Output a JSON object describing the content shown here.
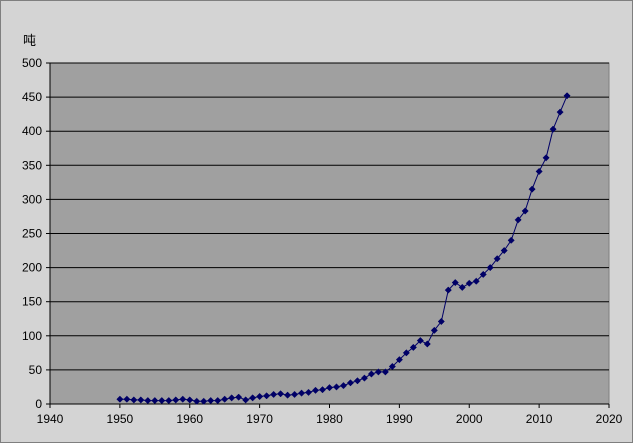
{
  "colors": {
    "frame_bg": "#d4d4d4",
    "plot_bg": "#a0a0a0",
    "gridline": "#000000",
    "series": "#000066"
  },
  "chart_data": {
    "type": "line",
    "ylabel": "吨",
    "xlim": [
      1940,
      2020
    ],
    "ylim": [
      0,
      500
    ],
    "x_ticks": [
      1940,
      1950,
      1960,
      1970,
      1980,
      1990,
      2000,
      2010,
      2020
    ],
    "y_ticks": [
      0,
      50,
      100,
      150,
      200,
      250,
      300,
      350,
      400,
      450,
      500
    ],
    "grid": true,
    "legend": "none",
    "series": [
      {
        "marker": "diamond",
        "x": [
          1950,
          1951,
          1952,
          1953,
          1954,
          1955,
          1956,
          1957,
          1958,
          1959,
          1960,
          1961,
          1962,
          1963,
          1964,
          1965,
          1966,
          1967,
          1968,
          1969,
          1970,
          1971,
          1972,
          1973,
          1974,
          1975,
          1976,
          1977,
          1978,
          1979,
          1980,
          1981,
          1982,
          1983,
          1984,
          1985,
          1986,
          1987,
          1988,
          1989,
          1990,
          1991,
          1992,
          1993,
          1994,
          1995,
          1996,
          1997,
          1998,
          1999,
          2000,
          2001,
          2002,
          2003,
          2004,
          2005,
          2006,
          2007,
          2008,
          2009,
          2010,
          2011,
          2012,
          2013,
          2014
        ],
        "y": [
          7,
          7,
          6,
          6,
          5,
          5,
          5,
          5,
          6,
          7,
          6,
          4,
          4,
          5,
          5,
          7,
          9,
          10,
          6,
          9,
          11,
          12,
          14,
          15,
          13,
          14,
          16,
          17,
          20,
          21,
          24,
          25,
          27,
          31,
          34,
          38,
          44,
          47,
          47,
          55,
          65,
          75,
          83,
          93,
          88,
          108,
          121,
          167,
          178,
          171,
          177,
          180,
          190,
          200,
          213,
          225,
          240,
          270,
          283,
          315,
          341,
          361,
          403,
          428,
          452
        ]
      }
    ]
  }
}
